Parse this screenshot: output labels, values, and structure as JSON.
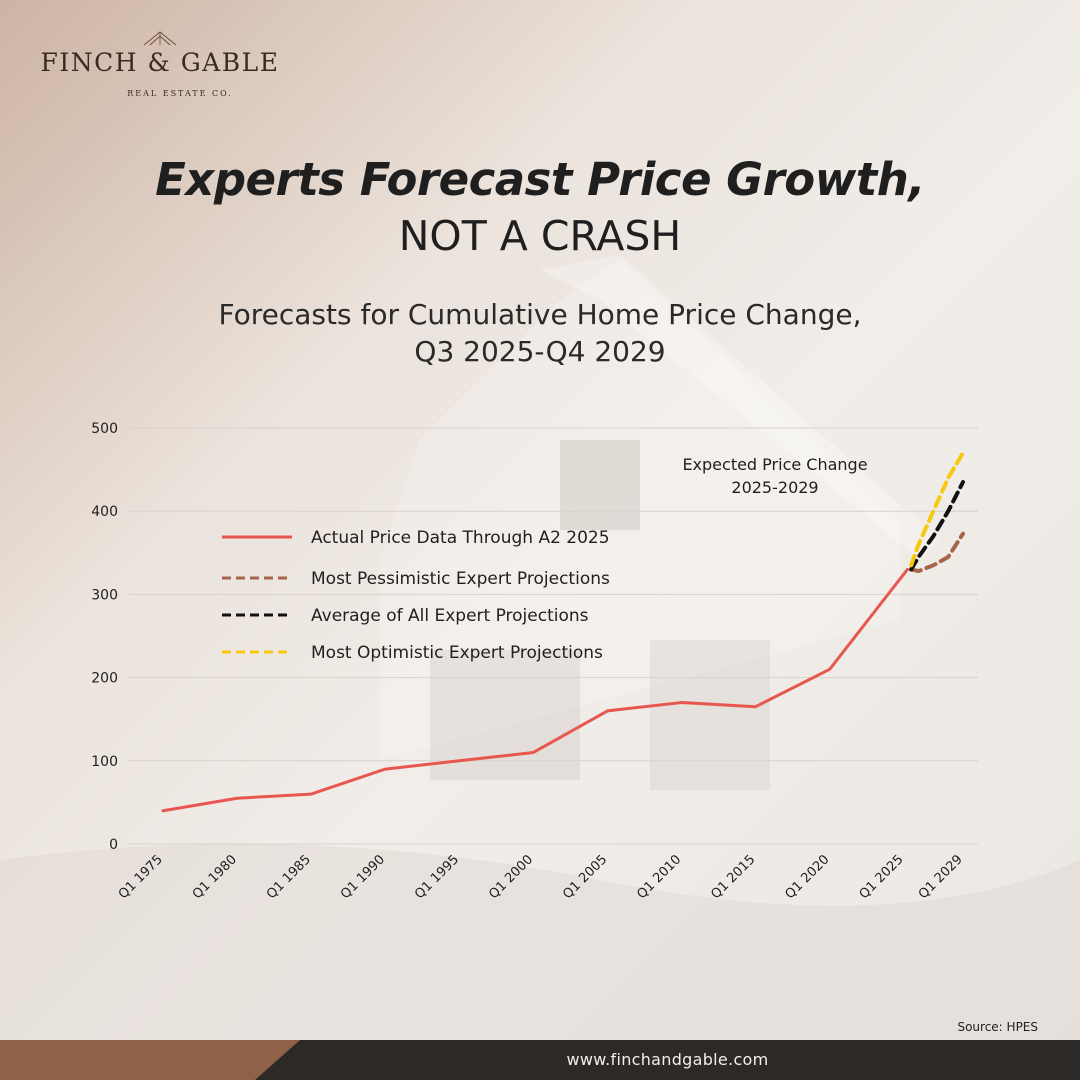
{
  "brand": {
    "name": "FINCH & GABLE",
    "tagline": "REAL ESTATE CO."
  },
  "headline": {
    "bold": "Experts Forecast Price Growth,",
    "light": "NOT A CRASH"
  },
  "subtitle": {
    "line1": "Forecasts for Cumulative Home Price Change,",
    "line2": "Q3 2025-Q4 2029"
  },
  "source": "Source: HPES",
  "footer": {
    "url": "www.finchandgable.com"
  },
  "colors": {
    "actual": "#e8574f",
    "pessimistic": "#a8644a",
    "average": "#111111",
    "optimistic": "#f6c90e",
    "footer_brown": "#8f6148",
    "footer_dark": "#2c2926"
  },
  "chart_data": {
    "type": "line",
    "annotation": [
      "Expected Price Change",
      "2025-2029"
    ],
    "ylim": [
      0,
      500
    ],
    "yticks": [
      0,
      100,
      200,
      300,
      400,
      500
    ],
    "x_ticks": [
      1975,
      1980,
      1985,
      1990,
      1995,
      2000,
      2005,
      2010,
      2015,
      2020,
      2025,
      2029
    ],
    "x_tick_labels": [
      "Q1 1975",
      "Q1 1980",
      "Q1 1985",
      "Q1 1990",
      "Q1 1995",
      "Q1 2000",
      "Q1 2005",
      "Q1 2010",
      "Q1 2015",
      "Q1 2020",
      "Q1 2025",
      "Q1 2029"
    ],
    "grid": true,
    "legend_position": "upper-left",
    "series": [
      {
        "name": "Actual Price Data Through A2 2025",
        "style": "solid",
        "color": "#e8574f",
        "x": [
          1975,
          1980,
          1985,
          1990,
          1995,
          2000,
          2005,
          2010,
          2015,
          2020,
          2025.25
        ],
        "y": [
          40,
          55,
          60,
          90,
          100,
          110,
          160,
          170,
          165,
          210,
          330
        ]
      },
      {
        "name": "Most Pessimistic Expert Projections",
        "style": "dashed",
        "color": "#a8644a",
        "x": [
          2025.5,
          2026,
          2027,
          2028,
          2029
        ],
        "y": [
          330,
          328,
          335,
          345,
          373
        ]
      },
      {
        "name": "Average of All Expert Projections",
        "style": "dashed",
        "color": "#111111",
        "x": [
          2025.5,
          2026,
          2027,
          2028,
          2029
        ],
        "y": [
          330,
          345,
          370,
          400,
          435
        ]
      },
      {
        "name": "Most Optimistic Expert Projections",
        "style": "dashed",
        "color": "#f6c90e",
        "x": [
          2025.5,
          2026,
          2027,
          2028,
          2029
        ],
        "y": [
          335,
          360,
          400,
          440,
          470
        ]
      }
    ]
  }
}
